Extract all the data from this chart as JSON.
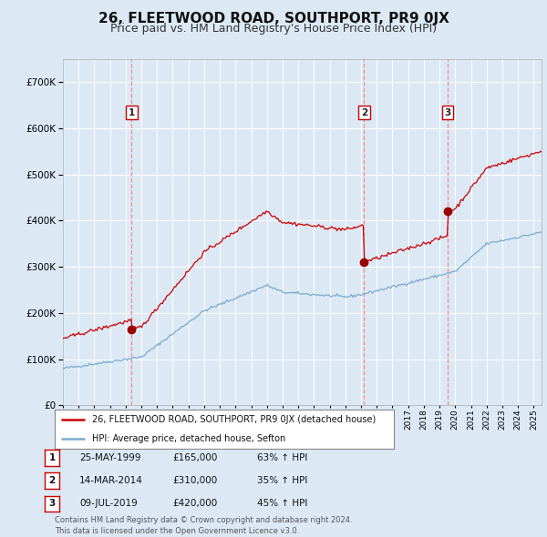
{
  "title": "26, FLEETWOOD ROAD, SOUTHPORT, PR9 0JX",
  "subtitle": "Price paid vs. HM Land Registry's House Price Index (HPI)",
  "title_fontsize": 11,
  "subtitle_fontsize": 9,
  "bg_color": "#dce9f5",
  "grid_color": "#ffffff",
  "ylim": [
    0,
    750000
  ],
  "yticks": [
    0,
    100000,
    200000,
    300000,
    400000,
    500000,
    600000,
    700000
  ],
  "ytick_labels": [
    "£0",
    "£100K",
    "£200K",
    "£300K",
    "£400K",
    "£500K",
    "£600K",
    "£700K"
  ],
  "red_line_color": "#cc0000",
  "blue_line_color": "#7aabcf",
  "sale_marker_color": "#990000",
  "vline_color": "#ff8888",
  "annotation_border_color": "#cc0000",
  "sales": [
    {
      "label": "1",
      "date_num": 1999.38,
      "price": 165000
    },
    {
      "label": "2",
      "date_num": 2014.19,
      "price": 310000
    },
    {
      "label": "3",
      "date_num": 2019.52,
      "price": 420000
    }
  ],
  "legend_entries": [
    "26, FLEETWOOD ROAD, SOUTHPORT, PR9 0JX (detached house)",
    "HPI: Average price, detached house, Sefton"
  ],
  "table_rows": [
    {
      "num": "1",
      "date": "25-MAY-1999",
      "price": "£165,000",
      "change": "63% ↑ HPI"
    },
    {
      "num": "2",
      "date": "14-MAR-2014",
      "price": "£310,000",
      "change": "35% ↑ HPI"
    },
    {
      "num": "3",
      "date": "09-JUL-2019",
      "price": "£420,000",
      "change": "45% ↑ HPI"
    }
  ],
  "footer": "Contains HM Land Registry data © Crown copyright and database right 2024.\nThis data is licensed under the Open Government Licence v3.0."
}
